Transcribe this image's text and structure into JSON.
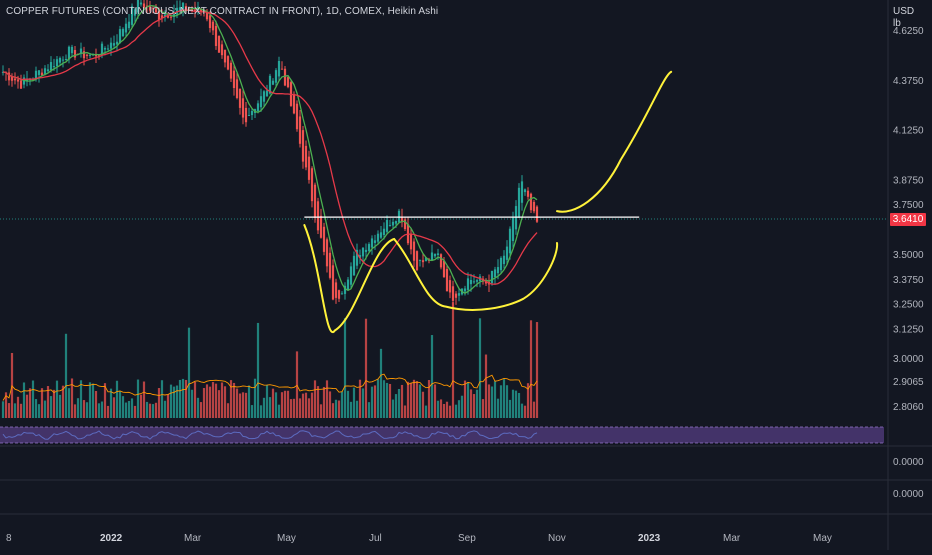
{
  "header": {
    "title": "COPPER FUTURES (CONTINUOUS: NEXT CONTRACT IN FRONT), 1D, COMEX, Heikin Ashi",
    "unit_line1": "USD",
    "unit_line2": "lb"
  },
  "colors": {
    "background": "#131722",
    "up_candle": "#26a69a",
    "down_candle": "#ef5350",
    "fast_ma": "#4caf50",
    "slow_ma": "#e53949",
    "annotation": "#fff23a",
    "resistance_line": "#ffffff",
    "volume_up": "#26a69a",
    "volume_down": "#ef5350",
    "volume_ma": "#ff9800",
    "oscillator_band": "#7e57c2",
    "price_badge": "#f23645"
  },
  "chart_data": {
    "type": "candlestick",
    "style": "Heikin Ashi",
    "interval": "1D",
    "exchange": "COMEX",
    "last_price": "3.6410",
    "price_axis_ticks": [
      "4.6250",
      "4.3750",
      "4.1250",
      "3.8750",
      "3.7500",
      "3.5000",
      "3.3750",
      "3.2500",
      "3.1250"
    ],
    "price_ylim": [
      3.1,
      4.7
    ],
    "volume_axis_ticks": [
      "3.0000",
      "2.9065",
      "2.8060"
    ],
    "oscillator_axis_ticks": [
      "0.0000",
      "0.0000"
    ],
    "x_ticks": [
      "8",
      "2022",
      "Mar",
      "May",
      "Jul",
      "Sep",
      "Nov",
      "2023",
      "Mar",
      "May"
    ],
    "grid": false,
    "close_path": [
      {
        "x": "2021-12-08",
        "y": 4.42
      },
      {
        "x": "2021-12-20",
        "y": 4.36
      },
      {
        "x": "2022-01-05",
        "y": 4.44
      },
      {
        "x": "2022-01-20",
        "y": 4.52
      },
      {
        "x": "2022-02-05",
        "y": 4.5
      },
      {
        "x": "2022-02-20",
        "y": 4.58
      },
      {
        "x": "2022-03-07",
        "y": 4.78
      },
      {
        "x": "2022-03-20",
        "y": 4.7
      },
      {
        "x": "2022-04-05",
        "y": 4.74
      },
      {
        "x": "2022-04-20",
        "y": 4.72
      },
      {
        "x": "2022-05-05",
        "y": 4.4
      },
      {
        "x": "2022-05-15",
        "y": 4.18
      },
      {
        "x": "2022-05-28",
        "y": 4.3
      },
      {
        "x": "2022-06-08",
        "y": 4.48
      },
      {
        "x": "2022-06-20",
        "y": 4.1
      },
      {
        "x": "2022-06-30",
        "y": 3.75
      },
      {
        "x": "2022-07-14",
        "y": 3.25
      },
      {
        "x": "2022-07-28",
        "y": 3.5
      },
      {
        "x": "2022-08-12",
        "y": 3.62
      },
      {
        "x": "2022-08-26",
        "y": 3.72
      },
      {
        "x": "2022-09-05",
        "y": 3.45
      },
      {
        "x": "2022-09-20",
        "y": 3.5
      },
      {
        "x": "2022-09-28",
        "y": 3.28
      },
      {
        "x": "2022-10-10",
        "y": 3.38
      },
      {
        "x": "2022-10-22",
        "y": 3.36
      },
      {
        "x": "2022-11-02",
        "y": 3.48
      },
      {
        "x": "2022-11-08",
        "y": 3.66
      },
      {
        "x": "2022-11-13",
        "y": 3.88
      },
      {
        "x": "2022-11-20",
        "y": 3.72
      },
      {
        "x": "2022-11-25",
        "y": 3.64
      }
    ],
    "resistance_level": 3.69
  }
}
